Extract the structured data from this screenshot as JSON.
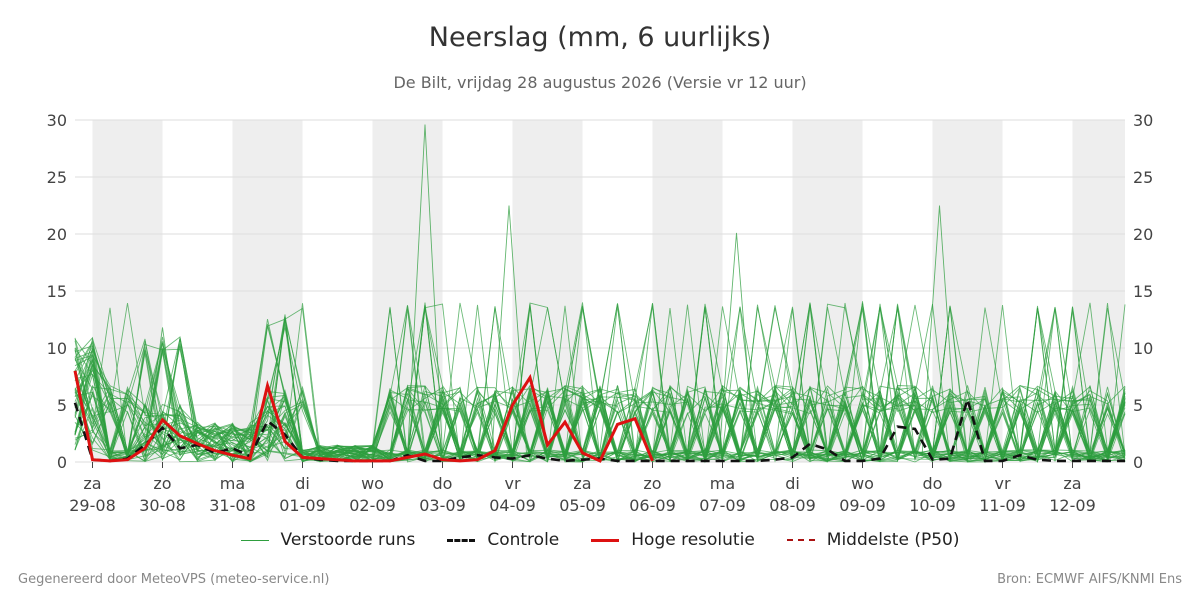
{
  "chart_data": {
    "type": "line",
    "title": "Neerslag (mm, 6 uurlijks)",
    "subtitle": "De Bilt, vrijdag 28 augustus 2026 (Versie vr 12 uur)",
    "ylim": [
      0,
      30
    ],
    "yticks": [
      0,
      5,
      10,
      15,
      20,
      25,
      30
    ],
    "xlim": [
      -0.25,
      14.75
    ],
    "days": [
      {
        "day": "za",
        "date": "29-08"
      },
      {
        "day": "zo",
        "date": "30-08"
      },
      {
        "day": "ma",
        "date": "31-08"
      },
      {
        "day": "di",
        "date": "01-09"
      },
      {
        "day": "wo",
        "date": "02-09"
      },
      {
        "day": "do",
        "date": "03-09"
      },
      {
        "day": "vr",
        "date": "04-09"
      },
      {
        "day": "za",
        "date": "05-09"
      },
      {
        "day": "zo",
        "date": "06-09"
      },
      {
        "day": "ma",
        "date": "07-09"
      },
      {
        "day": "di",
        "date": "08-09"
      },
      {
        "day": "wo",
        "date": "09-09"
      },
      {
        "day": "do",
        "date": "10-09"
      },
      {
        "day": "vr",
        "date": "11-09"
      },
      {
        "day": "za",
        "date": "12-09"
      }
    ],
    "grid": true,
    "legend_position": "bottom",
    "colors": {
      "ensemble": "#2e9e3e",
      "control": "#111111",
      "hires": "#dd1111",
      "median": "#aa1111",
      "shade": "#eeeeee",
      "grid": "#dddddd"
    },
    "series": [
      {
        "name": "Controle",
        "style": "dashed",
        "x": [
          -0.25,
          0,
          0.25,
          0.5,
          0.75,
          1,
          1.25,
          1.5,
          1.75,
          2,
          2.25,
          2.5,
          2.75,
          3,
          3.25,
          3.5,
          3.75,
          4,
          4.25,
          4.5,
          4.75,
          5,
          5.25,
          5.5,
          5.75,
          6,
          6.25,
          6.5,
          6.75,
          7,
          7.25,
          7.5,
          7.75,
          8,
          8.25,
          8.5,
          8.75,
          9,
          9.25,
          9.5,
          9.75,
          10,
          10.25,
          10.5,
          10.75,
          11,
          11.25,
          11.5,
          11.75,
          12,
          12.25,
          12.5,
          12.75,
          13,
          13.25,
          13.5,
          13.75,
          14,
          14.25,
          14.5,
          14.75
        ],
        "values": [
          5.2,
          0.2,
          0.1,
          0.3,
          1.5,
          3.0,
          1.2,
          1.5,
          0.8,
          1.2,
          0.5,
          3.6,
          2.4,
          0.4,
          0.2,
          0.1,
          0.1,
          0.1,
          0.1,
          0.6,
          0.1,
          0.1,
          0.4,
          0.6,
          0.4,
          0.3,
          0.6,
          0.3,
          0.1,
          0.2,
          0.3,
          0.1,
          0.1,
          0.1,
          0.1,
          0.1,
          0.1,
          0.1,
          0.1,
          0.1,
          0.2,
          0.4,
          1.6,
          1.1,
          0.1,
          0.1,
          0.3,
          3.1,
          2.9,
          0.2,
          0.3,
          5.5,
          0.1,
          0.1,
          0.6,
          0.2,
          0.1,
          0.1,
          0.1,
          0.1,
          0.1
        ]
      },
      {
        "name": "Hoge resolutie",
        "style": "solid",
        "x": [
          -0.25,
          0,
          0.25,
          0.5,
          0.75,
          1,
          1.25,
          1.5,
          1.75,
          2,
          2.25,
          2.5,
          2.75,
          3,
          3.25,
          3.5,
          3.75,
          4,
          4.25,
          4.5,
          4.75,
          5,
          5.25,
          5.5,
          5.75,
          6,
          6.25,
          6.5,
          6.75,
          7,
          7.25,
          7.5,
          7.75,
          8
        ],
        "values": [
          8.0,
          0.2,
          0.1,
          0.2,
          1.2,
          3.7,
          2.3,
          1.6,
          1.0,
          0.6,
          0.3,
          6.7,
          1.8,
          0.4,
          0.3,
          0.2,
          0.1,
          0.1,
          0.1,
          0.4,
          0.7,
          0.2,
          0.1,
          0.2,
          1.0,
          5.0,
          7.4,
          1.5,
          3.5,
          0.8,
          0.1,
          3.3,
          3.8,
          0.1
        ]
      },
      {
        "name": "Middelste (P50)",
        "style": "dashed",
        "hidden": true,
        "values": []
      }
    ],
    "ensemble": {
      "name": "Verstoorde runs",
      "members": 50
    }
  },
  "footer": {
    "left": "Gegenereerd door MeteoVPS (meteo-service.nl)",
    "right": "Bron: ECMWF AIFS/KNMI Ens"
  }
}
